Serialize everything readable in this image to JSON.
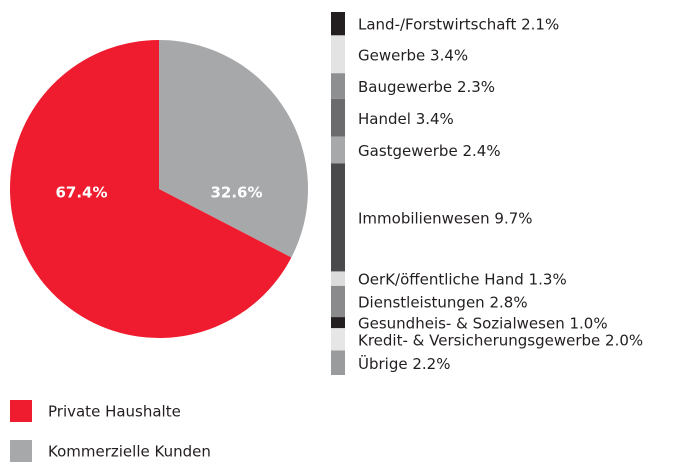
{
  "chart_data": [
    {
      "type": "pie",
      "categories": [
        "Private Haushalte",
        "Kommerzielle Kunden"
      ],
      "values": [
        67.4,
        32.6
      ],
      "value_labels": [
        "67.4%",
        "32.6%"
      ],
      "colors": [
        "#ee1c2e",
        "#a7a8aa"
      ]
    },
    {
      "type": "bar",
      "categories": [
        "Land-/Forstwirtschaft",
        "Gewerbe",
        "Baugewerbe",
        "Handel",
        "Gastgewerbe",
        "Immobilienwesen",
        "OerK/öffentliche Hand",
        "Dienstleistungen",
        "Gesundheis- & Sozialwesen",
        "Kredit- & Versicherungsgewerbe",
        "Übrige"
      ],
      "values": [
        2.1,
        3.4,
        2.3,
        3.4,
        2.4,
        9.7,
        1.3,
        2.8,
        1.0,
        2.0,
        2.2
      ],
      "value_labels": [
        "2.1%",
        "3.4%",
        "2.3%",
        "3.4%",
        "2.4%",
        "9.7%",
        "1.3%",
        "2.8%",
        "1.0%",
        "2.0%",
        "2.2%"
      ],
      "colors": [
        "#231f20",
        "#e3e3e3",
        "#8e8f91",
        "#6b6b6d",
        "#a7a8aa",
        "#4a4a4c",
        "#dcdcdc",
        "#8a8a8c",
        "#231f20",
        "#e6e6e6",
        "#9a9b9d"
      ]
    }
  ]
}
